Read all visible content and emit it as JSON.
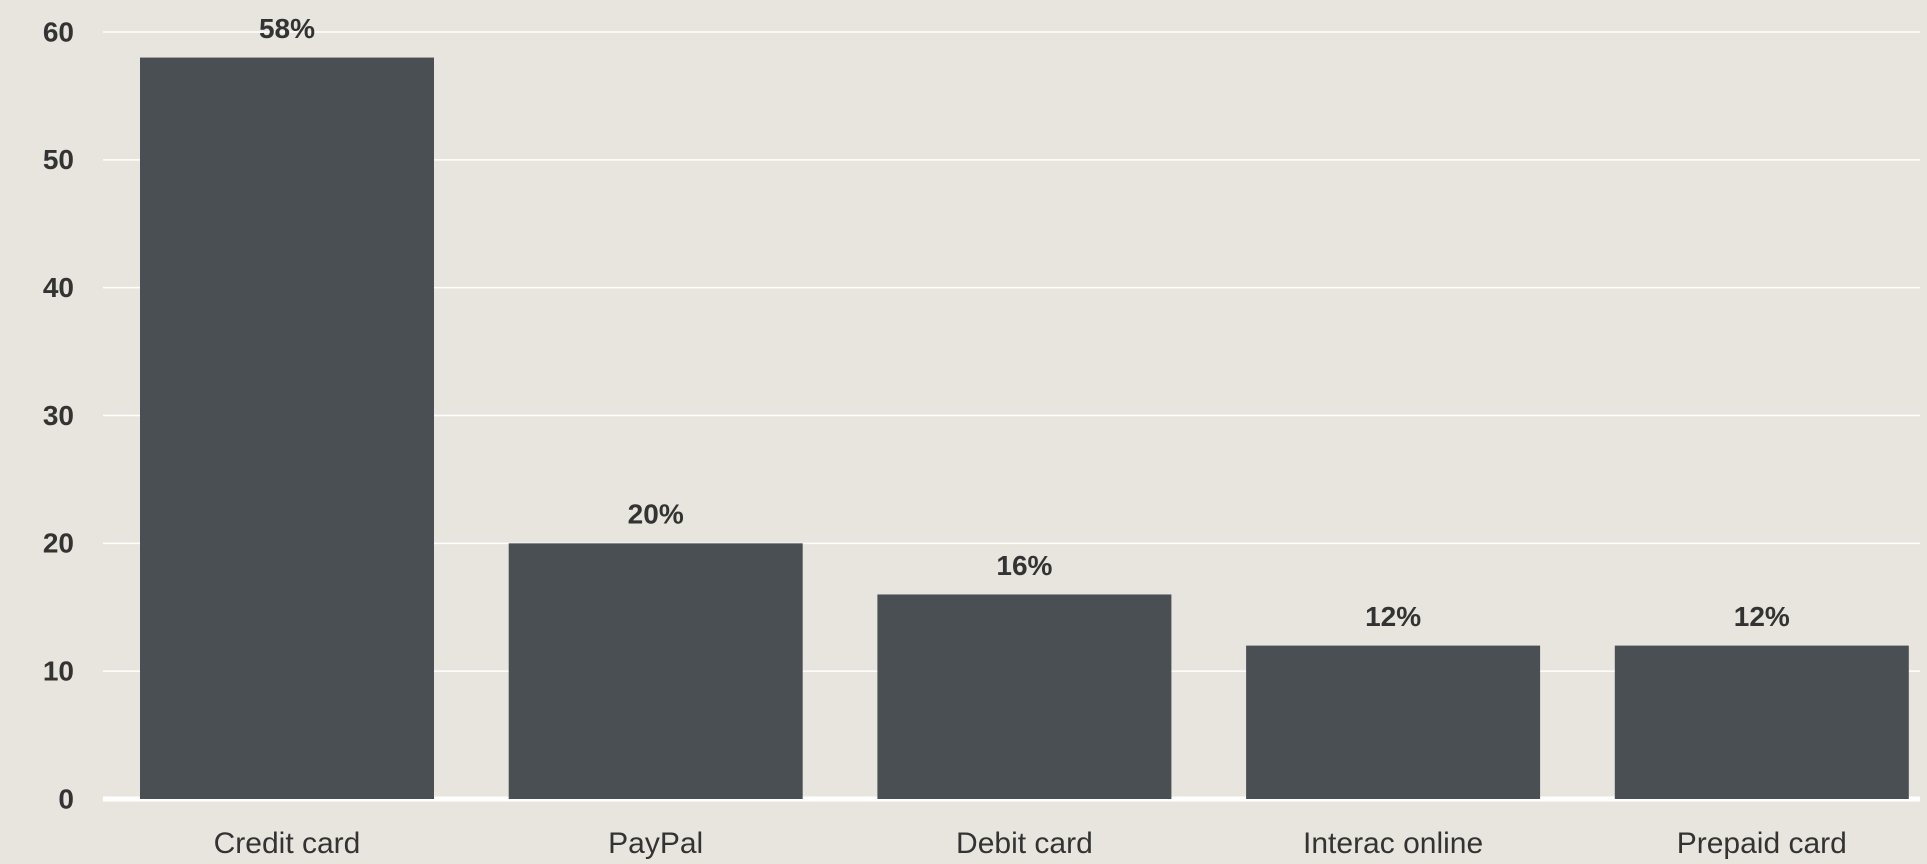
{
  "chart_data": {
    "type": "bar",
    "categories": [
      "Credit card",
      "PayPal",
      "Debit card",
      "Interac online",
      "Prepaid card"
    ],
    "values": [
      58,
      20,
      16,
      12,
      12
    ],
    "value_labels": [
      "58%",
      "20%",
      "16%",
      "12%",
      "12%"
    ],
    "color": "#4a4f54",
    "ylim": [
      0,
      60
    ],
    "yticks": [
      0,
      10,
      20,
      30,
      40,
      50,
      60
    ],
    "grid": true
  }
}
